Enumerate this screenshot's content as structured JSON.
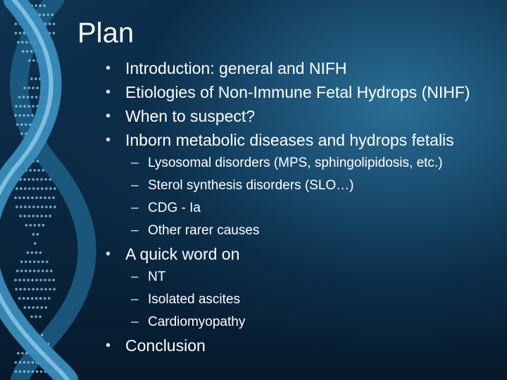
{
  "slide": {
    "title": "Plan",
    "bullet_symbol": "•",
    "dash_symbol": "–",
    "items": [
      {
        "level": 1,
        "text": "Introduction: general and NIFH"
      },
      {
        "level": 1,
        "text": "Etiologies of Non-Immune Fetal Hydrops (NIHF)"
      },
      {
        "level": 1,
        "text": "When to suspect?"
      },
      {
        "level": 1,
        "text": "Inborn metabolic diseases and hydrops fetalis"
      },
      {
        "level": 2,
        "text": "Lysosomal disorders (MPS, sphingolipidosis, etc.)"
      },
      {
        "level": 2,
        "text": "Sterol synthesis disorders (SLO…)"
      },
      {
        "level": 2,
        "text": "CDG - Ia"
      },
      {
        "level": 2,
        "text": "Other rarer causes"
      },
      {
        "level": 1,
        "text": "A quick word on"
      },
      {
        "level": 2,
        "text": "NT"
      },
      {
        "level": 2,
        "text": "Isolated ascites"
      },
      {
        "level": 2,
        "text": "Cardiomyopathy"
      },
      {
        "level": 1,
        "text": "Conclusion"
      }
    ]
  },
  "theme": {
    "background": "#0a2740",
    "text_color": "#ffffff",
    "helix_color": "#4fa3d1",
    "helix_bead_color": "#8fd0f0"
  }
}
